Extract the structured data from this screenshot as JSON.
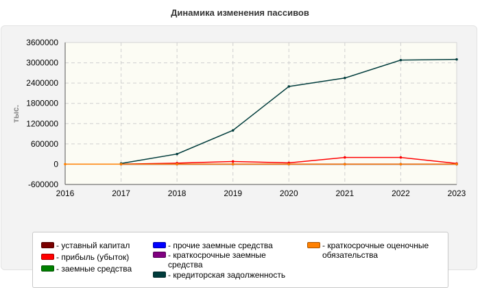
{
  "chart_data": {
    "type": "line",
    "title": "Динамика изменения пассивов",
    "ylabel": "тыс.",
    "xlabel": "",
    "x": [
      2016,
      2017,
      2018,
      2019,
      2020,
      2021,
      2022,
      2023
    ],
    "x_tick_labels": [
      "2016",
      "2017",
      "2018",
      "2019",
      "2020",
      "2021",
      "2022",
      "2023"
    ],
    "xlim": [
      2016,
      2023
    ],
    "ylim": [
      -600000,
      3600000
    ],
    "y_ticks": [
      -600000,
      0,
      600000,
      1200000,
      1800000,
      2400000,
      3000000,
      3600000
    ],
    "y_tick_labels": [
      "-600000",
      "0",
      "600000",
      "1200000",
      "1800000",
      "2400000",
      "3000000",
      "3600000"
    ],
    "grid": true,
    "legend_position": "bottom",
    "plot_background": "#fcfcf4",
    "series": [
      {
        "name": "уставный капитал",
        "color": "#7a0000",
        "x": [
          2017,
          2018,
          2019,
          2020,
          2021,
          2022,
          2023
        ],
        "values": [
          10,
          10,
          10,
          10,
          10,
          10,
          10
        ]
      },
      {
        "name": "прибыль (убыток)",
        "color": "#ff0000",
        "x": [
          2017,
          2018,
          2019,
          2020,
          2021,
          2022,
          2023
        ],
        "values": [
          5000,
          30000,
          80000,
          40000,
          200000,
          200000,
          20000
        ]
      },
      {
        "name": "заемные средства",
        "color": "#008000",
        "x": [
          2017,
          2018,
          2019,
          2020,
          2021,
          2022,
          2023
        ],
        "values": [
          0,
          0,
          0,
          0,
          0,
          0,
          0
        ]
      },
      {
        "name": "прочие заемные средства",
        "color": "#0000ff",
        "x": [
          2017,
          2018,
          2019,
          2020,
          2021,
          2022,
          2023
        ],
        "values": [
          0,
          0,
          0,
          0,
          0,
          0,
          0
        ]
      },
      {
        "name": "краткосрочные заемные средства",
        "color": "#800080",
        "x": [
          2017,
          2018,
          2019,
          2020,
          2021,
          2022,
          2023
        ],
        "values": [
          0,
          0,
          0,
          0,
          0,
          0,
          0
        ]
      },
      {
        "name": "кредиторская задолженность",
        "color": "#003c3c",
        "x": [
          2017,
          2018,
          2019,
          2020,
          2021,
          2022,
          2023
        ],
        "values": [
          20000,
          300000,
          1000000,
          2300000,
          2550000,
          3080000,
          3100000
        ]
      },
      {
        "name": "краткосрочные оценочные обязательства",
        "color": "#ff8000",
        "x": [
          2016,
          2017,
          2018,
          2019,
          2020,
          2021,
          2022,
          2023
        ],
        "values": [
          0,
          0,
          0,
          0,
          0,
          0,
          0,
          0
        ]
      }
    ]
  }
}
